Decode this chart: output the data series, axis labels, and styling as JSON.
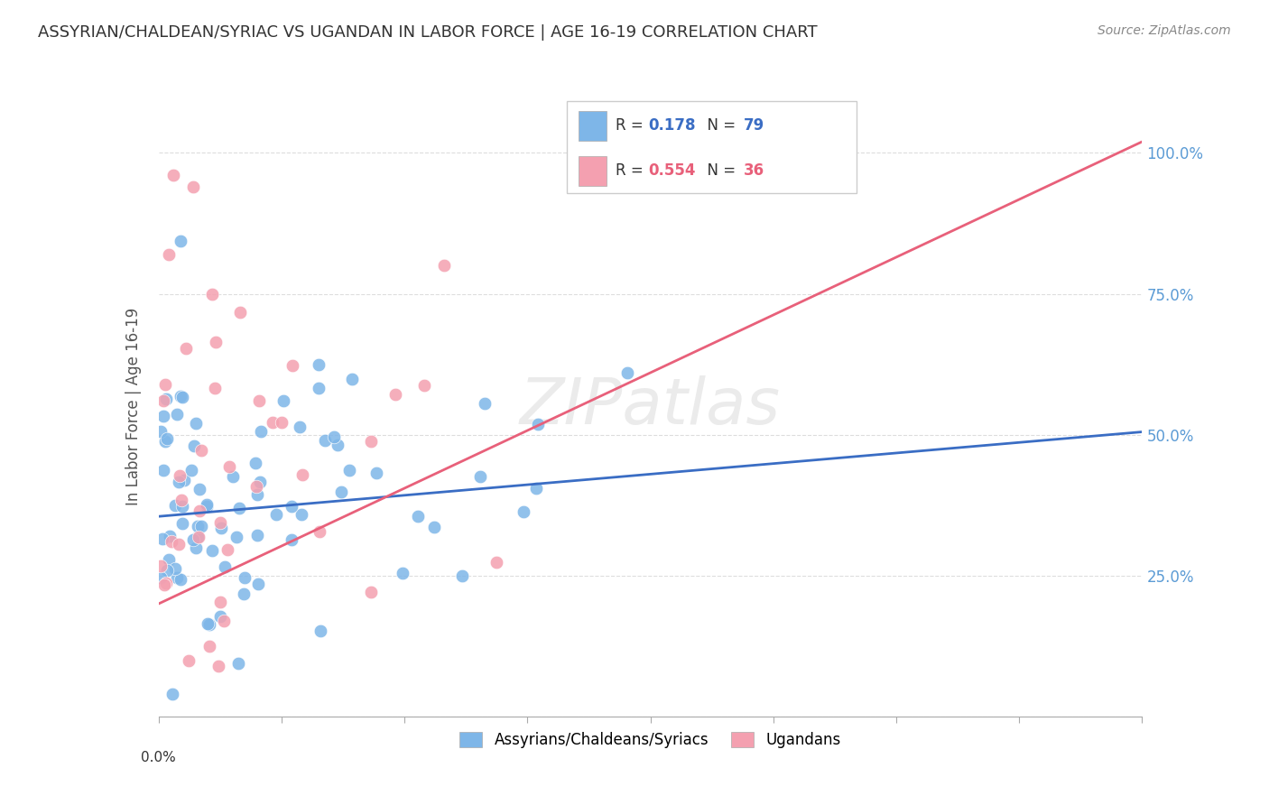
{
  "title": "ASSYRIAN/CHALDEAN/SYRIAC VS UGANDAN IN LABOR FORCE | AGE 16-19 CORRELATION CHART",
  "source": "Source: ZipAtlas.com",
  "ylabel_label": "In Labor Force | Age 16-19",
  "watermark": "ZIPatlas",
  "blue_R": 0.178,
  "blue_N": 79,
  "pink_R": 0.554,
  "pink_N": 36,
  "blue_color": "#7EB6E8",
  "pink_color": "#F4A0B0",
  "trendline_blue": "#3A6DC4",
  "trendline_pink": "#E8607A",
  "blue_trend_x": [
    0.0,
    0.2
  ],
  "blue_trend_y": [
    0.355,
    0.505
  ],
  "pink_trend_x": [
    0.0,
    0.2
  ],
  "pink_trend_y": [
    0.2,
    1.02
  ],
  "xlim": [
    0.0,
    0.2
  ],
  "ylim": [
    0.0,
    1.1
  ],
  "background_color": "#FFFFFF",
  "grid_color": "#DDDDDD",
  "title_color": "#333333",
  "source_color": "#888888",
  "axis_label_color": "#555555",
  "right_axis_color": "#5B9BD5",
  "legend_blue_label": "Assyrians/Chaldeans/Syriacs",
  "legend_pink_label": "Ugandans"
}
